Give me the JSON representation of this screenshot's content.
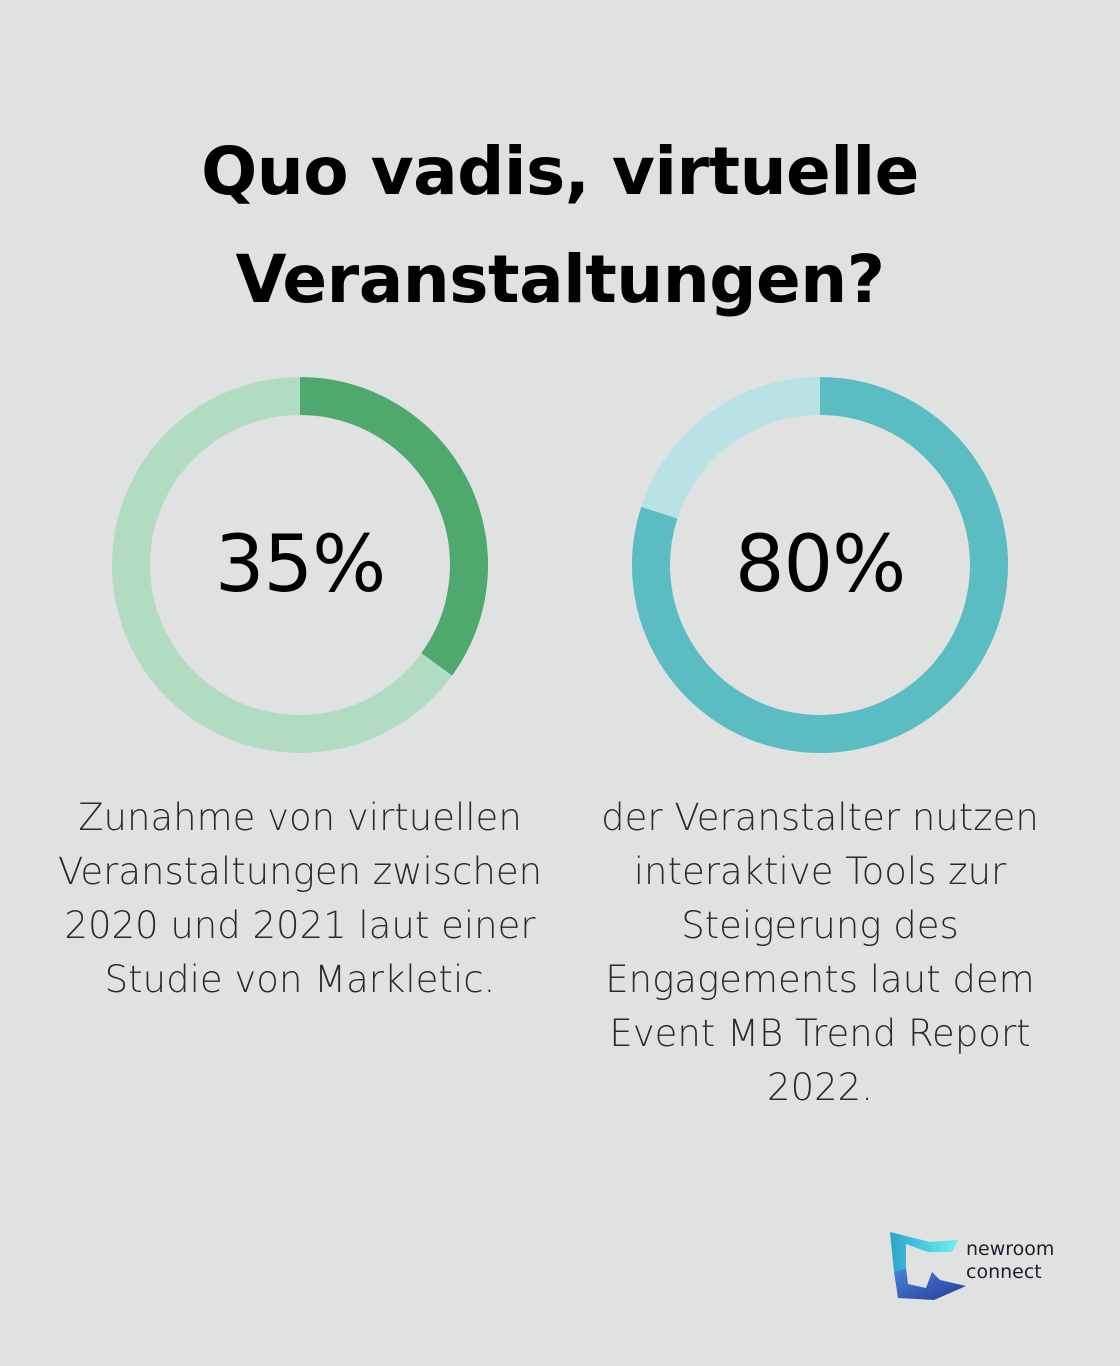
{
  "title": {
    "line1": "Quo vadis, virtuelle",
    "line2": "Veranstaltungen?"
  },
  "chart_data": [
    {
      "type": "pie",
      "value": 35,
      "value_label": "35%",
      "description": [
        "Zunahme von virtuellen",
        "Veranstaltungen zwischen",
        "2020 und 2021 laut einer",
        "Studie von Markletic."
      ],
      "colors": {
        "fill": "#4fa96e",
        "track": "#b1dcc2"
      }
    },
    {
      "type": "pie",
      "value": 80,
      "value_label": "80%",
      "description": [
        "der Veranstalter nutzen",
        "interaktive Tools zur",
        "Steigerung des",
        "Engagements laut dem",
        "Event MB Trend Report",
        "2022."
      ],
      "colors": {
        "fill": "#5bbcc2",
        "track": "#b9e2e5"
      }
    }
  ],
  "logo": {
    "line1": "newroom",
    "line2": "connect",
    "colors": {
      "top": "#5fe0ea",
      "bottom": "#2f52b8"
    }
  }
}
